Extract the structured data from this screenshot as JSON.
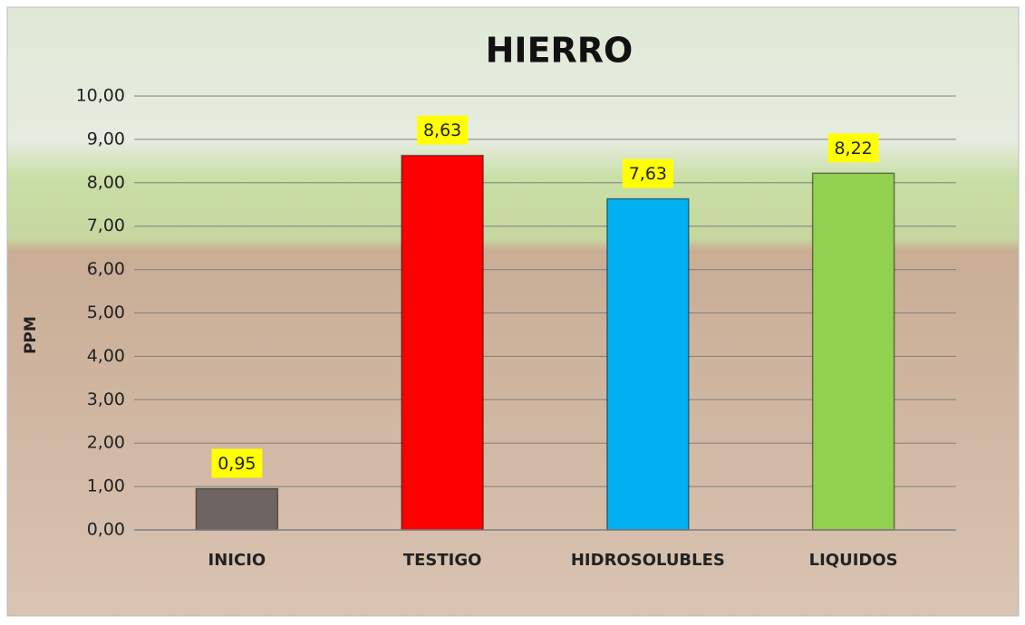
{
  "chart_data": {
    "type": "bar",
    "title": "HIERRO",
    "y_label": "PPM",
    "categories": [
      "INICIO",
      "TESTIGO",
      "HIDROSOLUBLES",
      "LIQUIDOS"
    ],
    "values": [
      0.95,
      8.63,
      7.63,
      8.22
    ],
    "value_labels": [
      "0,95",
      "8,63",
      "7,63",
      "8,22"
    ],
    "colors": [
      "#6e6563",
      "#ff0000",
      "#00b0f0",
      "#92d050"
    ],
    "ylim": [
      0,
      10
    ],
    "yticks": [
      {
        "value": 0,
        "label": "0,00"
      },
      {
        "value": 1,
        "label": "1,00"
      },
      {
        "value": 2,
        "label": "2,00"
      },
      {
        "value": 3,
        "label": "3,00"
      },
      {
        "value": 4,
        "label": "4,00"
      },
      {
        "value": 5,
        "label": "5,00"
      },
      {
        "value": 6,
        "label": "6,00"
      },
      {
        "value": 7,
        "label": "7,00"
      },
      {
        "value": 8,
        "label": "8,00"
      },
      {
        "value": 9,
        "label": "9,00"
      },
      {
        "value": 10,
        "label": "10,00"
      }
    ],
    "grid": true
  }
}
